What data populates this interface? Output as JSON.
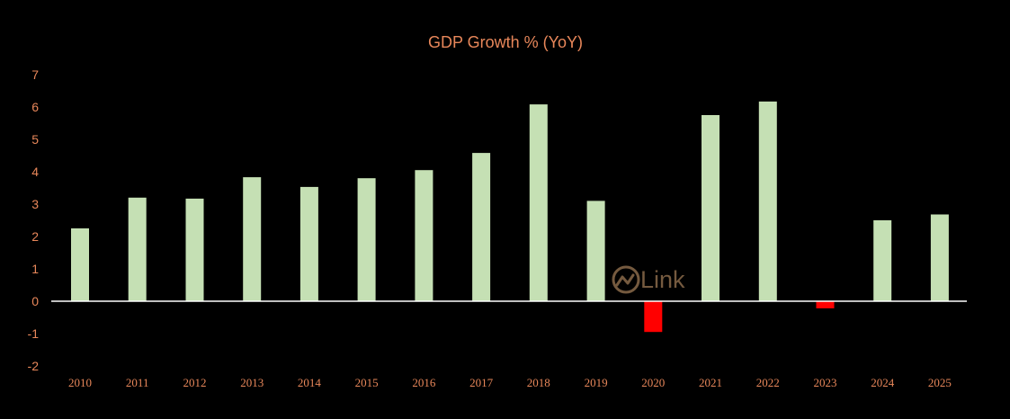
{
  "chart_data": {
    "type": "bar",
    "title": "GDP Growth % (YoY)",
    "xlabel": "",
    "ylabel": "",
    "categories": [
      "2010",
      "2011",
      "2012",
      "2013",
      "2014",
      "2015",
      "2016",
      "2017",
      "2018",
      "2019",
      "2020",
      "2021",
      "2022",
      "2023",
      "2024",
      "2025"
    ],
    "values": [
      2.25,
      3.2,
      3.17,
      3.83,
      3.53,
      3.8,
      4.05,
      4.58,
      6.08,
      3.1,
      -0.95,
      5.75,
      6.17,
      -0.22,
      2.5,
      2.68
    ],
    "ylim": [
      -2,
      7
    ],
    "yticks": [
      "-2",
      "-1",
      "0",
      "1",
      "2",
      "3",
      "4",
      "5",
      "6",
      "7"
    ],
    "grid": false,
    "legend": "none",
    "colors": {
      "background": "#000000",
      "positive_bar": "#C5E0B4",
      "negative_bar": "#FF0000",
      "text": "#E8875A",
      "axis": "#FFFFFF",
      "watermark": "#8A6A4A"
    }
  },
  "watermark": {
    "text": "Link",
    "icon": "chart-line-circle-icon"
  }
}
